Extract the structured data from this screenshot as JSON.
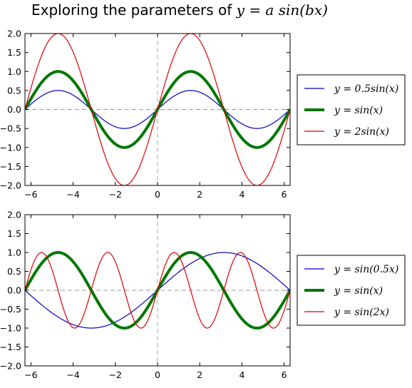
{
  "title": {
    "prefix": "Exploring the parameters of ",
    "math": "y = a sin(bx)"
  },
  "chart_data": [
    {
      "type": "line",
      "xlim": [
        -6.283,
        6.283
      ],
      "ylim": [
        -2.0,
        2.0
      ],
      "xticks": [
        -6,
        -4,
        -2,
        0,
        2,
        4,
        6
      ],
      "xtick_labels": [
        "−6",
        "−4",
        "−2",
        "0",
        "2",
        "4",
        "6"
      ],
      "yticks": [
        -2.0,
        -1.5,
        -1.0,
        -0.5,
        0.0,
        0.5,
        1.0,
        1.5,
        2.0
      ],
      "ytick_labels": [
        "−2.0",
        "−1.5",
        "−1.0",
        "−0.5",
        "0.0",
        "0.5",
        "1.0",
        "1.5",
        "2.0"
      ],
      "grid": false,
      "reference_lines": [
        "y = 0 (dashed gray)",
        "x = 0 (dashed gray)"
      ],
      "legend_placement": "outside-right",
      "series": [
        {
          "name": "y = 0.5sin(x)",
          "a": 0.5,
          "b": 1,
          "color": "#0000cc",
          "width": 1.2,
          "x": [
            -6.283,
            -4.712,
            -3.142,
            -1.571,
            0,
            1.571,
            3.142,
            4.712,
            6.283
          ],
          "y": [
            0,
            0.5,
            0,
            -0.5,
            0,
            0.5,
            0,
            -0.5,
            0
          ]
        },
        {
          "name": "y = sin(x)",
          "a": 1,
          "b": 1,
          "color": "#007700",
          "width": 4,
          "x": [
            -6.283,
            -4.712,
            -3.142,
            -1.571,
            0,
            1.571,
            3.142,
            4.712,
            6.283
          ],
          "y": [
            0,
            1,
            0,
            -1,
            0,
            1,
            0,
            -1,
            0
          ]
        },
        {
          "name": "y = 2sin(x)",
          "a": 2,
          "b": 1,
          "color": "#dd0000",
          "width": 1.2,
          "x": [
            -6.283,
            -4.712,
            -3.142,
            -1.571,
            0,
            1.571,
            3.142,
            4.712,
            6.283
          ],
          "y": [
            0,
            2,
            0,
            -2,
            0,
            2,
            0,
            -2,
            0
          ]
        }
      ]
    },
    {
      "type": "line",
      "xlim": [
        -6.283,
        6.283
      ],
      "ylim": [
        -2.0,
        2.0
      ],
      "xticks": [
        -6,
        -4,
        -2,
        0,
        2,
        4,
        6
      ],
      "xtick_labels": [
        "−6",
        "−4",
        "−2",
        "0",
        "2",
        "4",
        "6"
      ],
      "yticks": [
        -2.0,
        -1.5,
        -1.0,
        -0.5,
        0.0,
        0.5,
        1.0,
        1.5,
        2.0
      ],
      "ytick_labels": [
        "−2.0",
        "−1.5",
        "−1.0",
        "−0.5",
        "0.0",
        "0.5",
        "1.0",
        "1.5",
        "2.0"
      ],
      "grid": false,
      "reference_lines": [
        "y = 0 (dashed gray)",
        "x = 0 (dashed gray)"
      ],
      "legend_placement": "outside-right",
      "series": [
        {
          "name": "y = sin(0.5x)",
          "a": 1,
          "b": 0.5,
          "color": "#0000cc",
          "width": 1.2,
          "x": [
            -6.283,
            -3.142,
            0,
            3.142,
            6.283
          ],
          "y": [
            0,
            -1,
            0,
            1,
            0
          ]
        },
        {
          "name": "y = sin(x)",
          "a": 1,
          "b": 1,
          "color": "#007700",
          "width": 4,
          "x": [
            -6.283,
            -4.712,
            -3.142,
            -1.571,
            0,
            1.571,
            3.142,
            4.712,
            6.283
          ],
          "y": [
            0,
            1,
            0,
            -1,
            0,
            1,
            0,
            -1,
            0
          ]
        },
        {
          "name": "y = sin(2x)",
          "a": 1,
          "b": 2,
          "color": "#dd0000",
          "width": 1.2,
          "x": [
            -6.283,
            -5.498,
            -4.712,
            -3.927,
            -3.142,
            -2.356,
            -1.571,
            -0.785,
            0,
            0.785,
            1.571,
            2.356,
            3.142,
            3.927,
            4.712,
            5.498,
            6.283
          ],
          "y": [
            0,
            1,
            0,
            -1,
            0,
            1,
            0,
            -1,
            0,
            1,
            0,
            -1,
            0,
            1,
            0,
            -1,
            0
          ]
        }
      ]
    }
  ]
}
